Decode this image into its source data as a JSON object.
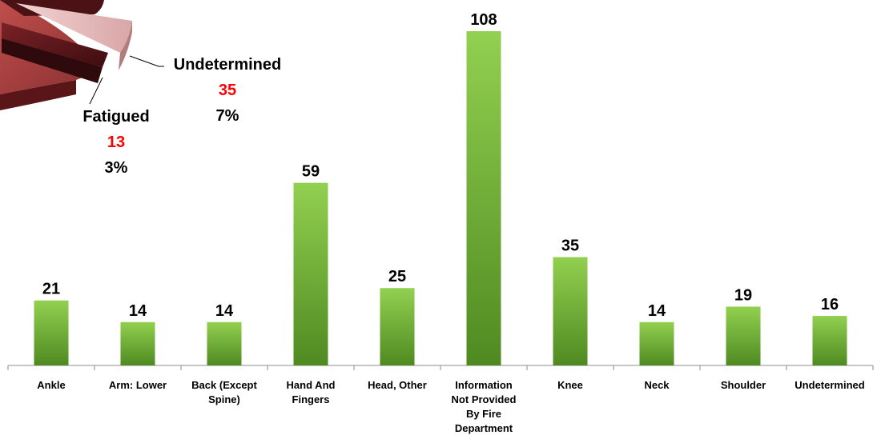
{
  "colors": {
    "bar_top": "#92d050",
    "bar_bottom": "#4f8a21",
    "axis": "#8c8c8c",
    "text": "#000000",
    "highlight": "#ff0000",
    "pie_dark": "#4a1215",
    "pie_mid": "#a03a3c",
    "pie_light": "#e4b9b9"
  },
  "pie_labels": [
    {
      "name": "Undetermined",
      "count": "35",
      "percent": "7%"
    },
    {
      "name": "Fatigued",
      "count": "13",
      "percent": "3%"
    }
  ],
  "chart_data": [
    {
      "type": "pie",
      "partial": true,
      "slices": [
        {
          "label": "Undetermined",
          "value": 35,
          "percent": 7
        },
        {
          "label": "Fatigued",
          "value": 13,
          "percent": 3
        }
      ]
    },
    {
      "type": "bar",
      "categories": [
        [
          "Ankle"
        ],
        [
          "Arm: Lower"
        ],
        [
          "Back (Except",
          "Spine)"
        ],
        [
          "Hand And",
          "Fingers"
        ],
        [
          "Head, Other"
        ],
        [
          "Information",
          "Not Provided",
          "By Fire",
          "Department"
        ],
        [
          "Knee"
        ],
        [
          "Neck"
        ],
        [
          "Shoulder"
        ],
        [
          "Undetermined"
        ]
      ],
      "values": [
        21,
        14,
        14,
        59,
        25,
        108,
        35,
        14,
        19,
        16
      ],
      "ylim": [
        0,
        108
      ],
      "grid": false,
      "legend": "none"
    }
  ]
}
